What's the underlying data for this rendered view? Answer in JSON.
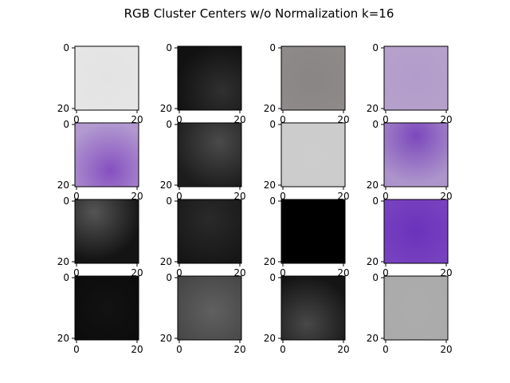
{
  "chart_data": {
    "type": "image-grid",
    "title": "RGB Cluster Centers w/o Normalization k=16",
    "rows": 4,
    "cols": 4,
    "axis_ticks": {
      "x": [
        "0",
        "20"
      ],
      "y": [
        "0",
        "20"
      ]
    },
    "xlim": [
      0,
      20
    ],
    "ylim": [
      20,
      0
    ],
    "panels": [
      {
        "id": 1,
        "center": "#e3e3e3",
        "edge": "#e6e6e6",
        "glow": [
          0.5,
          0.5
        ]
      },
      {
        "id": 2,
        "center": "#303030",
        "edge": "#111111",
        "glow": [
          0.7,
          0.7
        ]
      },
      {
        "id": 3,
        "center": "#8a8585",
        "edge": "#8f8b8b",
        "glow": [
          0.5,
          0.5
        ]
      },
      {
        "id": 4,
        "center": "#b29ccb",
        "edge": "#b6a2cb",
        "glow": [
          0.5,
          0.5
        ]
      },
      {
        "id": 5,
        "center": "#8650c0",
        "edge": "#b29ad0",
        "glow": [
          0.55,
          0.75
        ]
      },
      {
        "id": 6,
        "center": "#4a4a4a",
        "edge": "#1c1c1c",
        "glow": [
          0.65,
          0.3
        ]
      },
      {
        "id": 7,
        "center": "#cdcdcd",
        "edge": "#cbcbcb",
        "glow": [
          0.5,
          0.5
        ]
      },
      {
        "id": 8,
        "center": "#7c48bc",
        "edge": "#ad95cb",
        "glow": [
          0.5,
          0.2
        ]
      },
      {
        "id": 9,
        "center": "#555555",
        "edge": "#141414",
        "glow": [
          0.3,
          0.2
        ]
      },
      {
        "id": 10,
        "center": "#2a2a2a",
        "edge": "#161616",
        "glow": [
          0.5,
          0.3
        ]
      },
      {
        "id": 11,
        "center": "#000000",
        "edge": "#000000",
        "glow": [
          0.5,
          0.5
        ]
      },
      {
        "id": 12,
        "center": "#6c32bb",
        "edge": "#7a46c0",
        "glow": [
          0.5,
          0.5
        ]
      },
      {
        "id": 13,
        "center": "#121212",
        "edge": "#0b0b0b",
        "glow": [
          0.5,
          0.5
        ]
      },
      {
        "id": 14,
        "center": "#606060",
        "edge": "#444444",
        "glow": [
          0.55,
          0.55
        ]
      },
      {
        "id": 15,
        "center": "#484848",
        "edge": "#151515",
        "glow": [
          0.4,
          0.75
        ]
      },
      {
        "id": 16,
        "center": "#acacac",
        "edge": "#aaaaaa",
        "glow": [
          0.5,
          0.5
        ]
      }
    ]
  }
}
